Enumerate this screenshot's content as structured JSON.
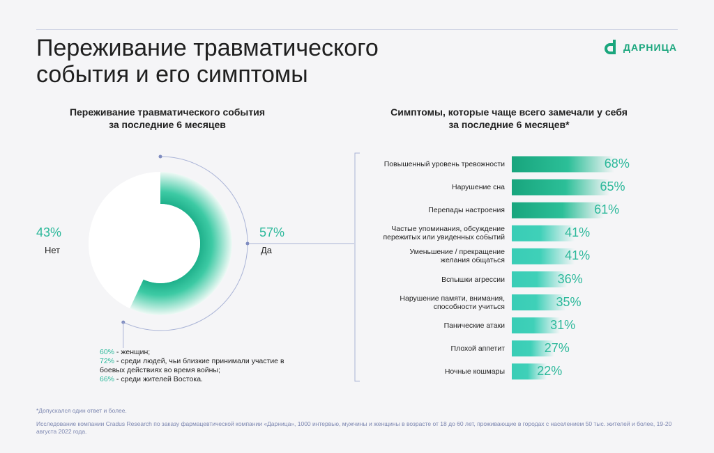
{
  "header": {
    "title_line1": "Переживание травматического",
    "title_line2": "события и его симптомы",
    "logo_text": "ДАРНИЦА",
    "logo_icon": "darnitsa-d-logo-icon",
    "brand_color": "#1aa67d"
  },
  "left": {
    "title_line1": "Переживание травматического события",
    "title_line2": "за последние 6 месяцев"
  },
  "right": {
    "title_line1": "Симптомы, которые чаще всего замечали у себя",
    "title_line2": "за последние 6 месяцев*"
  },
  "note": {
    "items": [
      {
        "pct": "60%",
        "text": " - женщин;"
      },
      {
        "pct": "72%",
        "text": " - среди людей, чьи близкие принимали участие в боевых действиях во время войны;"
      },
      {
        "pct": "66%",
        "text": " - среди жителей Востока."
      }
    ]
  },
  "footer": {
    "footnote": "*Допускался один ответ и более.",
    "source": "Исследование компании Cradus Research по заказу фармацевтической компании «Дарница», 1000 интервью, мужчины и женщины в возрасте от 18 до 60 лет, проживающие в городах с населением 50 тыс. жителей и более, 19-20 августа 2022 года."
  },
  "chart_data": [
    {
      "type": "pie",
      "categories": [
        "Нет",
        "Да"
      ],
      "values": [
        43,
        57
      ],
      "labels": [
        "43%",
        "57%"
      ],
      "colors": {
        "Да": "#22b894",
        "Нет": "#ffffff"
      }
    },
    {
      "type": "bar",
      "orientation": "horizontal",
      "categories": [
        "Повышенный уровень тревожности",
        "Нарушение сна",
        "Перепады настроения",
        "Частые упоминания, обсуждение пережитых или увиденных событий",
        "Уменьшение / прекращение желания общаться",
        "Вспышки агрессии",
        "Нарушение памяти, внимания, способности учиться",
        "Панические атаки",
        "Плохой аппетит",
        "Ночные кошмары"
      ],
      "category_lines": [
        [
          "Повышенный уровень тревожности"
        ],
        [
          "Нарушение сна"
        ],
        [
          "Перепады настроения"
        ],
        [
          "Частые упоминания, обсуждение",
          "пережитых или увиденных событий"
        ],
        [
          "Уменьшение / прекращение",
          "желания общаться"
        ],
        [
          "Вспышки агрессии"
        ],
        [
          "Нарушение памяти, внимания,",
          "способности учиться"
        ],
        [
          "Панические атаки"
        ],
        [
          "Плохой аппетит"
        ],
        [
          "Ночные кошмары"
        ]
      ],
      "values": [
        68,
        65,
        61,
        41,
        41,
        36,
        35,
        31,
        27,
        22
      ],
      "labels": [
        "68%",
        "65%",
        "61%",
        "41%",
        "41%",
        "36%",
        "35%",
        "31%",
        "27%",
        "22%"
      ],
      "colors": {
        "top": "#1aa67d",
        "rest": "#3fd0b8"
      }
    }
  ]
}
